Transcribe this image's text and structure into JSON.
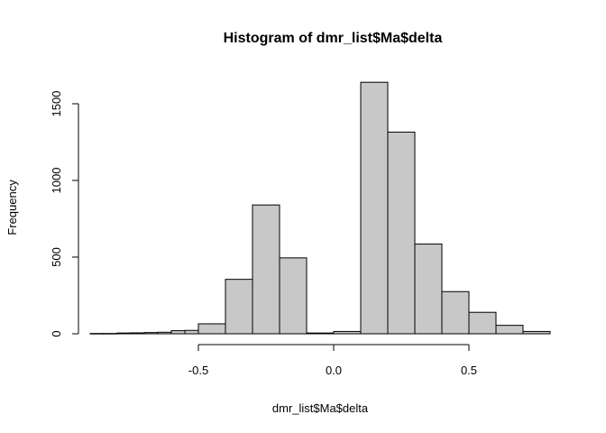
{
  "chart_data": {
    "type": "bar",
    "title": "Histogram of dmr_list$Ma$delta",
    "xlabel": "dmr_list$Ma$delta",
    "ylabel": "Frequency",
    "bin_width": 0.05,
    "bins": [
      {
        "x0": -0.9,
        "x1": -0.85,
        "count": 2
      },
      {
        "x0": -0.85,
        "x1": -0.8,
        "count": 2
      },
      {
        "x0": -0.8,
        "x1": -0.75,
        "count": 5
      },
      {
        "x0": -0.75,
        "x1": -0.7,
        "count": 6
      },
      {
        "x0": -0.7,
        "x1": -0.65,
        "count": 8
      },
      {
        "x0": -0.65,
        "x1": -0.6,
        "count": 10
      },
      {
        "x0": -0.6,
        "x1": -0.55,
        "count": 20
      },
      {
        "x0": -0.55,
        "x1": -0.5,
        "count": 22
      },
      {
        "x0": -0.5,
        "x1": -0.4,
        "count": 65
      },
      {
        "x0": -0.4,
        "x1": -0.3,
        "count": 355
      },
      {
        "x0": -0.3,
        "x1": -0.2,
        "count": 840
      },
      {
        "x0": -0.2,
        "x1": -0.1,
        "count": 495
      },
      {
        "x0": -0.1,
        "x1": 0.0,
        "count": 5
      },
      {
        "x0": 0.0,
        "x1": 0.1,
        "count": 15
      },
      {
        "x0": 0.1,
        "x1": 0.2,
        "count": 1640
      },
      {
        "x0": 0.2,
        "x1": 0.3,
        "count": 1315
      },
      {
        "x0": 0.3,
        "x1": 0.4,
        "count": 585
      },
      {
        "x0": 0.4,
        "x1": 0.5,
        "count": 275
      },
      {
        "x0": 0.5,
        "x1": 0.6,
        "count": 140
      },
      {
        "x0": 0.6,
        "x1": 0.7,
        "count": 55
      },
      {
        "x0": 0.7,
        "x1": 0.8,
        "count": 15
      }
    ],
    "xlim": [
      -0.9,
      0.8
    ],
    "ylim": [
      0,
      1650
    ],
    "x_ticks": [
      {
        "value": -0.5,
        "label": "-0.5"
      },
      {
        "value": 0.0,
        "label": "0.0"
      },
      {
        "value": 0.5,
        "label": "0.5"
      }
    ],
    "y_ticks": [
      {
        "value": 0,
        "label": "0"
      },
      {
        "value": 500,
        "label": "500"
      },
      {
        "value": 1000,
        "label": "1000"
      },
      {
        "value": 1500,
        "label": "1500"
      }
    ],
    "bar_fill": "#c8c8c8",
    "bar_stroke": "#000000",
    "grid": false,
    "legend": "none"
  }
}
